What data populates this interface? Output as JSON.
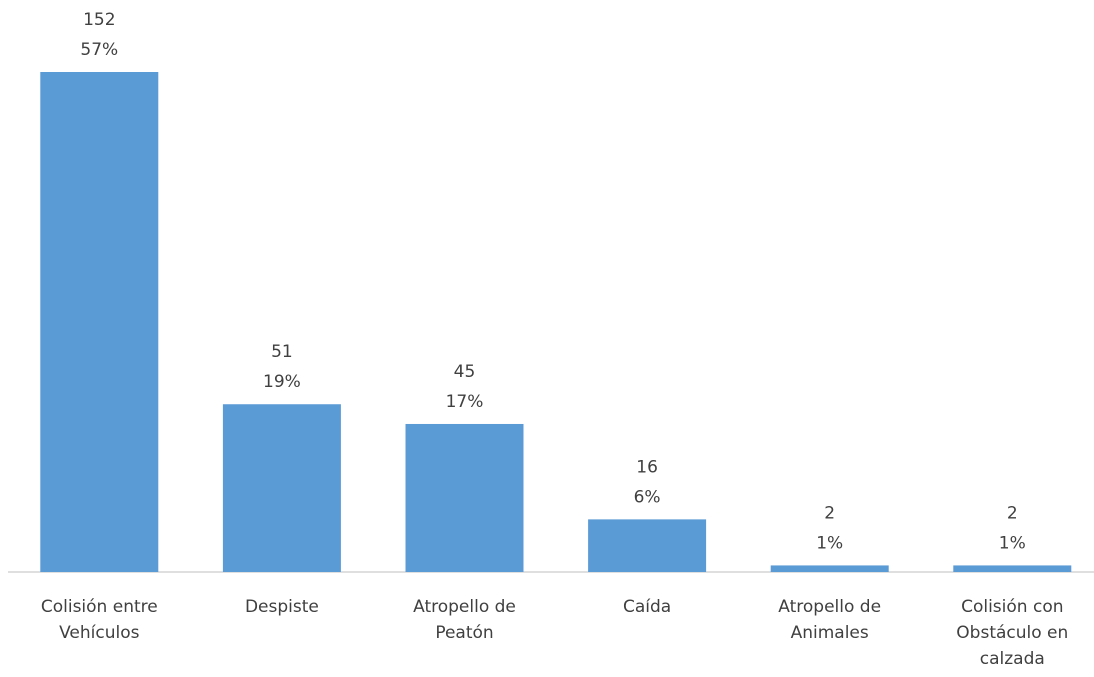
{
  "chart_data": {
    "type": "bar",
    "categories": [
      "Colisión entre Vehículos",
      "Despiste",
      "Atropello de Peatón",
      "Caída",
      "Atropello de Animales",
      "Colisión con Obstáculo en calzada"
    ],
    "values": [
      152,
      51,
      45,
      16,
      2,
      2
    ],
    "percent_labels": [
      "57%",
      "19%",
      "17%",
      "6%",
      "1%",
      "1%"
    ],
    "color": "#5b9bd5"
  }
}
